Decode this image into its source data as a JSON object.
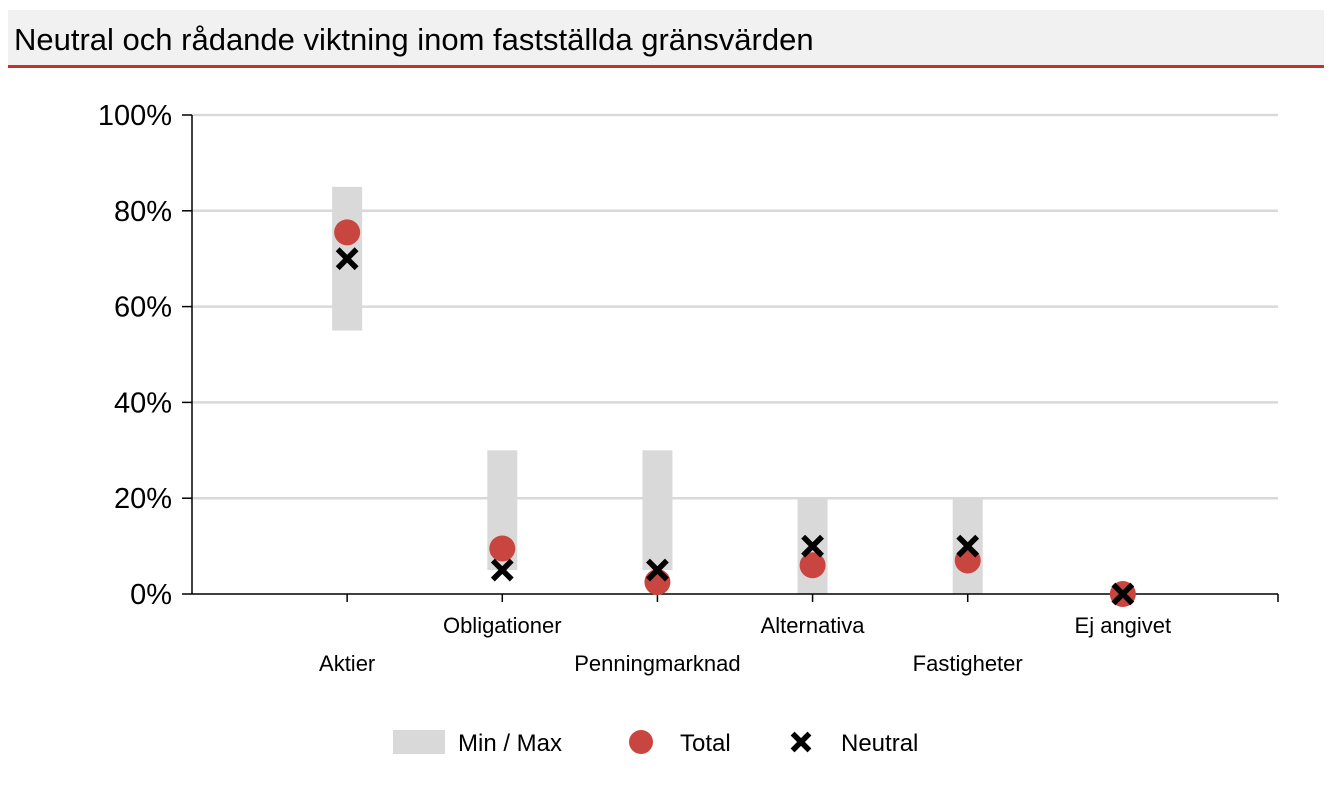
{
  "title": "Neutral och rådande viktning inom fastställda gränsvärden",
  "chart_data": {
    "type": "scatter",
    "title": "Neutral och rådande viktning inom fastställda gränsvärden",
    "categories": [
      "Aktier",
      "Obligationer",
      "Penningmarknad",
      "Alternativa",
      "Fastigheter",
      "Ej angivet"
    ],
    "ylim": [
      0,
      100
    ],
    "y_ticks": [
      "0%",
      "20%",
      "40%",
      "60%",
      "80%",
      "100%"
    ],
    "y_tick_values": [
      0,
      20,
      40,
      60,
      80,
      100
    ],
    "grid": true,
    "series": [
      {
        "name": "Min / Max",
        "type": "range",
        "color": "#d9d9d9",
        "min": [
          55,
          5,
          5,
          0,
          0,
          0
        ],
        "max": [
          85,
          30,
          30,
          20,
          20,
          0
        ]
      },
      {
        "name": "Total",
        "type": "marker-circle",
        "color": "#c8463f",
        "values": [
          75.5,
          9.5,
          2.5,
          6,
          7,
          0
        ]
      },
      {
        "name": "Neutral",
        "type": "marker-x",
        "color": "#000000",
        "values": [
          70,
          5,
          5,
          10,
          10,
          0
        ]
      }
    ],
    "legend_position": "bottom-center",
    "legend": [
      "Min / Max",
      "Total",
      "Neutral"
    ]
  }
}
